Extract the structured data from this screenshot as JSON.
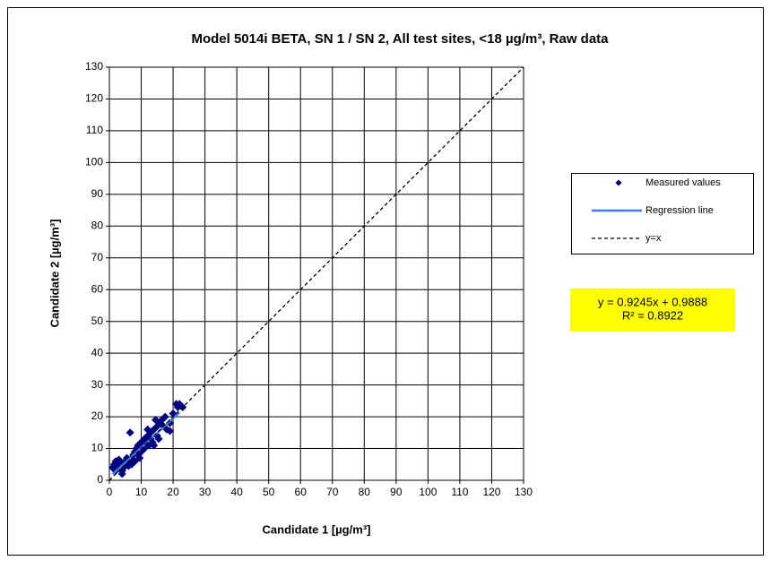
{
  "chart_data": {
    "type": "scatter",
    "title": "Model 5014i BETA, SN 1 / SN 2, All test sites, <18 µg/m³, Raw data",
    "x_label": "Candidate 1 [µg/m³]",
    "y_label": "Candidate 2 [µg/m³]",
    "xlim": [
      0,
      130
    ],
    "ylim": [
      0,
      130
    ],
    "xticks": [
      0,
      10,
      20,
      30,
      40,
      50,
      60,
      70,
      80,
      90,
      100,
      110,
      120,
      130
    ],
    "yticks": [
      0,
      10,
      20,
      30,
      40,
      50,
      60,
      70,
      80,
      90,
      100,
      110,
      120,
      130
    ],
    "grid": true,
    "legend": "right",
    "series": [
      {
        "name": "Measured values",
        "color": "#000080",
        "style": "markers",
        "x": [
          1,
          1.5,
          2,
          2,
          2.5,
          3,
          3,
          3.5,
          4,
          4,
          4.5,
          5,
          5,
          5.5,
          6,
          6,
          6.5,
          7,
          7,
          7.5,
          8,
          8,
          8.5,
          9,
          9,
          9.5,
          10,
          10,
          10.5,
          11,
          11,
          11.5,
          12,
          12,
          12.5,
          13,
          13,
          13.5,
          14,
          14,
          14.5,
          15,
          15,
          15.5,
          16,
          16.5,
          17,
          17.5,
          18,
          19,
          19,
          20,
          21,
          21.5,
          22,
          23
        ],
        "values": [
          4,
          5,
          6,
          3,
          5.5,
          4,
          6.5,
          5,
          3,
          2,
          4,
          5,
          6,
          7,
          4.5,
          6,
          15,
          7,
          5,
          8,
          9,
          6,
          10,
          8,
          11,
          7,
          9,
          12,
          11,
          10,
          13,
          12,
          14,
          16,
          11,
          13,
          15,
          12,
          16,
          11,
          19,
          14,
          17,
          13,
          18,
          19,
          17,
          20,
          16,
          15.5,
          18,
          21,
          24,
          23,
          24,
          23
        ]
      },
      {
        "name": "Regression line",
        "color": "#3a7fe0",
        "style": "line",
        "x": [
          1,
          22
        ],
        "values": [
          1.91,
          21.33
        ]
      },
      {
        "name": "y=x",
        "color": "#000000",
        "style": "dashed",
        "x": [
          0,
          130
        ],
        "values": [
          0,
          130
        ]
      }
    ],
    "annotation": [
      "y = 0.9245x + 0.9888",
      "R² = 0.8922"
    ]
  }
}
